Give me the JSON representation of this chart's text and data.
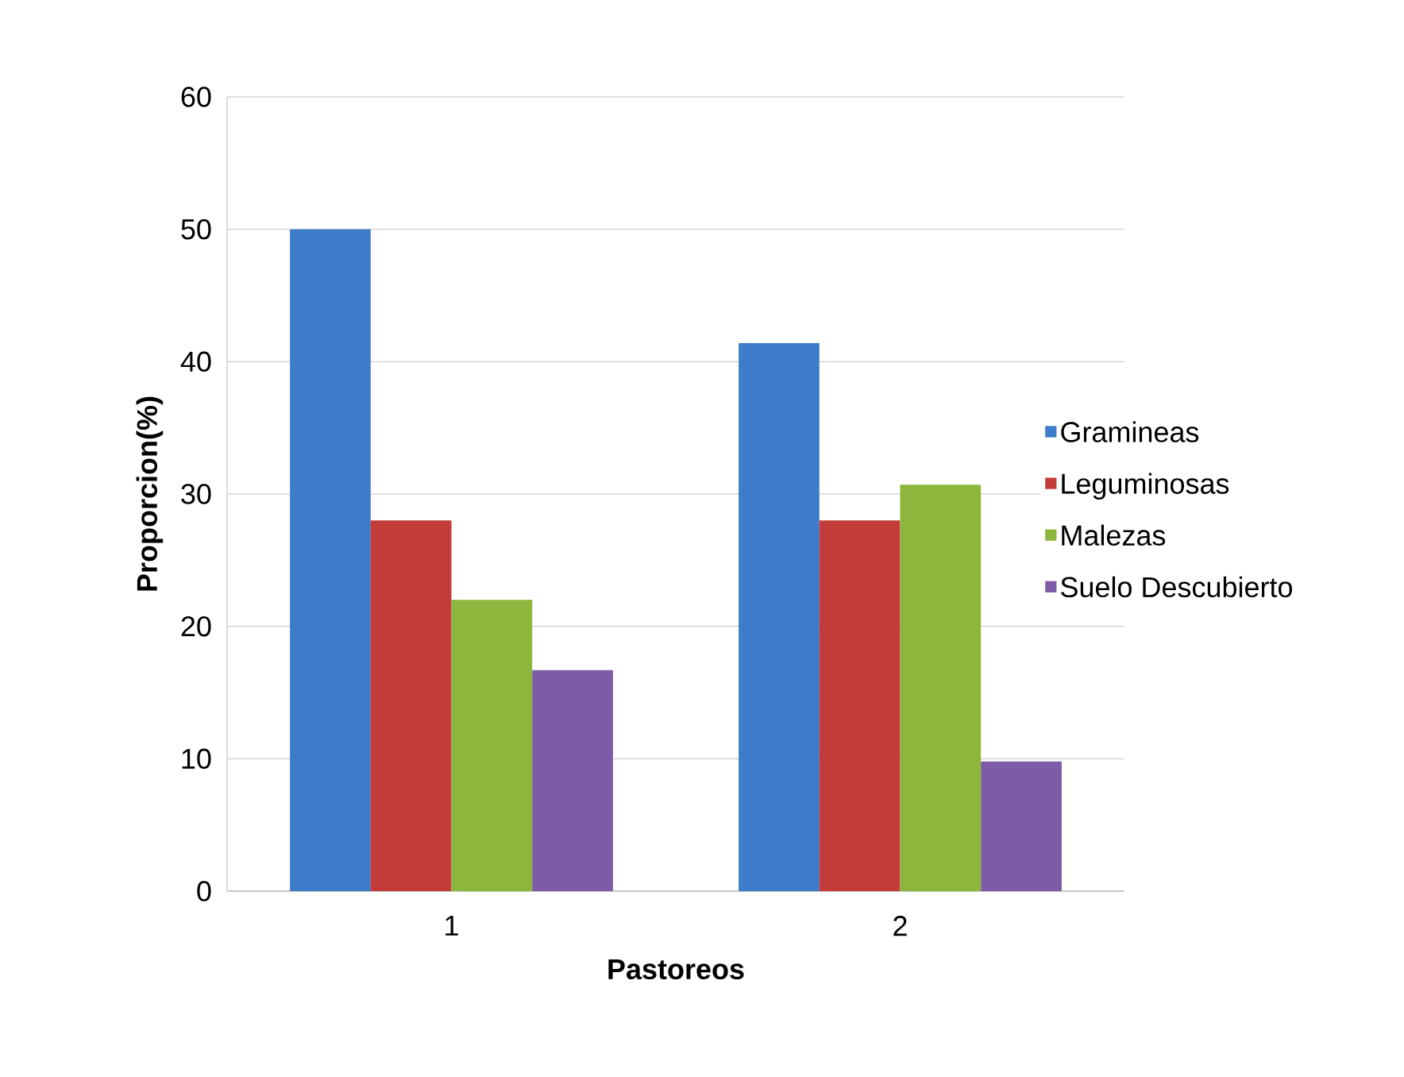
{
  "chart_data": {
    "type": "bar",
    "xlabel": "Pastoreos",
    "ylabel": "Proporcion(%)",
    "categories": [
      "1",
      "2"
    ],
    "series": [
      {
        "name": "Gramineas",
        "color": "#3d7cc9",
        "values": [
          50,
          41.4
        ]
      },
      {
        "name": "Leguminosas",
        "color": "#c43c39",
        "values": [
          28,
          28
        ]
      },
      {
        "name": "Malezas",
        "color": "#8db63c",
        "values": [
          22,
          30.7
        ]
      },
      {
        "name": "Suelo Descubierto",
        "color": "#7d5ba6",
        "values": [
          16.7,
          9.8
        ]
      }
    ],
    "ylim": [
      0,
      60
    ],
    "yticks": [
      0,
      10,
      20,
      30,
      40,
      50,
      60
    ],
    "grid": "y",
    "legend": "right"
  }
}
